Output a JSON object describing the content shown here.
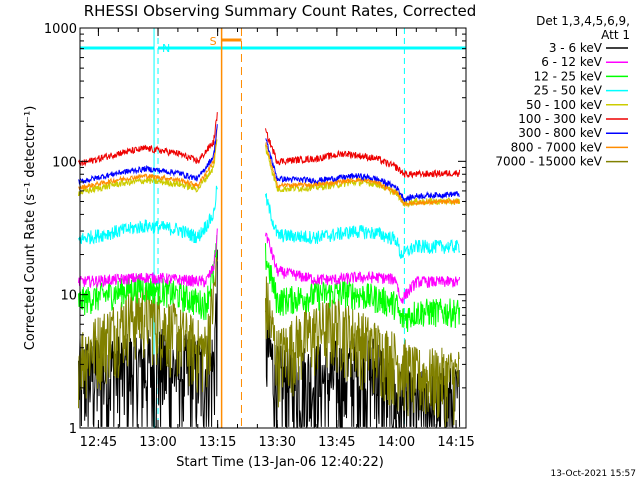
{
  "window": {
    "title": "RHESSI Observing Summary Count Rates, Corrected",
    "footer_date": "13-Oct-2021 15:57"
  },
  "legend": {
    "header": [
      "Det 1,3,4,5,6,9,",
      "Att 1"
    ],
    "entries": [
      {
        "label": "3 - 6 keV",
        "color": "#000000"
      },
      {
        "label": "6 - 12 keV",
        "color": "#ff00ff"
      },
      {
        "label": "12 - 25 keV",
        "color": "#00ff00"
      },
      {
        "label": "25 - 50 keV",
        "color": "#00ffff"
      },
      {
        "label": "50 - 100 keV",
        "color": "#cccc00"
      },
      {
        "label": "100 - 300 keV",
        "color": "#ee0000"
      },
      {
        "label": "300 - 800 keV",
        "color": "#0000ff"
      },
      {
        "label": "800 - 7000 keV",
        "color": "#ff8c00"
      },
      {
        "label": "7000 - 15000 keV",
        "color": "#808000"
      }
    ]
  },
  "chart_data": {
    "type": "line",
    "title": "RHESSI Observing Summary Count Rates, Corrected",
    "xlabel": "Start Time (13-Jan-06 12:40:22)",
    "ylabel": "Corrected Count Rate (s⁻¹ detector⁻¹)",
    "y_scale": "log",
    "xlim": [
      "12:40:22",
      "14:17:30"
    ],
    "ylim": [
      1,
      1000
    ],
    "x_ticks": [
      "12:45",
      "13:00",
      "13:15",
      "13:30",
      "13:45",
      "14:00",
      "14:15"
    ],
    "y_ticks": [
      "1",
      "10",
      "100",
      "1000"
    ],
    "gaps": [
      [
        "13:16",
        "13:26"
      ]
    ],
    "annotations": [
      {
        "label": "N",
        "kind": "night",
        "start": "13:00",
        "end": null,
        "color": "#00ffff"
      },
      {
        "label": "",
        "kind": "night",
        "start": null,
        "end": "12:59",
        "color": "#00ffff"
      },
      {
        "label": "",
        "kind": "night",
        "start": "14:02",
        "end": null,
        "color": "#00ffff"
      },
      {
        "label": "S",
        "kind": "SAA",
        "start": "13:16",
        "end": "13:21",
        "color": "#ff8c00"
      }
    ],
    "series": [
      {
        "name": "3 - 6 keV",
        "color": "#000000",
        "noise": 0.9,
        "x": [
          "12:40",
          "12:50",
          "13:00",
          "13:10",
          "13:14",
          "13:15",
          "13:16",
          "13:26",
          "13:27",
          "13:30",
          "13:40",
          "13:50",
          "13:55",
          "14:00",
          "14:05",
          "14:10",
          "14:16"
        ],
        "y": [
          2.5,
          2.8,
          3.0,
          2.6,
          3.0,
          13,
          null,
          null,
          5,
          2.2,
          2.3,
          2.6,
          2.7,
          1.5,
          1.4,
          1.5,
          1.6
        ]
      },
      {
        "name": "6 - 12 keV",
        "color": "#ff00ff",
        "noise": 0.1,
        "x": [
          "12:40",
          "12:50",
          "12:57",
          "13:05",
          "13:12",
          "13:14",
          "13:15",
          "13:16",
          "13:26",
          "13:27",
          "13:30",
          "13:40",
          "13:45",
          "13:50",
          "13:55",
          "14:00",
          "14:01",
          "14:05",
          "14:16"
        ],
        "y": [
          12.5,
          13,
          13.5,
          13,
          12.5,
          16,
          30,
          null,
          null,
          30,
          15,
          13,
          13,
          13.5,
          13.5,
          13,
          9,
          12.5,
          12.5
        ]
      },
      {
        "name": "12 - 25 keV",
        "color": "#00ff00",
        "noise": 0.25,
        "x": [
          "12:40",
          "12:50",
          "12:55",
          "13:00",
          "13:05",
          "13:12",
          "13:14",
          "13:15",
          "13:16",
          "13:26",
          "13:27",
          "13:30",
          "13:40",
          "13:47",
          "13:55",
          "14:00",
          "14:01",
          "14:05",
          "14:16"
        ],
        "y": [
          9,
          10.5,
          11.5,
          11,
          10,
          8.5,
          15,
          25,
          null,
          null,
          20,
          9,
          10,
          10.5,
          9.5,
          8.5,
          6.5,
          7.5,
          7.5
        ]
      },
      {
        "name": "25 - 50 keV",
        "color": "#00ffff",
        "noise": 0.12,
        "x": [
          "12:40",
          "12:50",
          "12:57",
          "13:05",
          "13:10",
          "13:14",
          "13:15",
          "13:16",
          "13:26",
          "13:27",
          "13:30",
          "13:40",
          "13:50",
          "13:55",
          "14:00",
          "14:01",
          "14:05",
          "14:16"
        ],
        "y": [
          26,
          30,
          33,
          31,
          27,
          40,
          70,
          null,
          null,
          55,
          28,
          27,
          30,
          29,
          26,
          20,
          23,
          23
        ]
      },
      {
        "name": "50 - 100 keV",
        "color": "#cccc00",
        "noise": 0.06,
        "x": [
          "12:40",
          "12:50",
          "12:57",
          "13:05",
          "13:10",
          "13:14",
          "13:15",
          "13:16",
          "13:26",
          "13:27",
          "13:30",
          "13:40",
          "13:50",
          "13:55",
          "14:00",
          "14:02",
          "14:05",
          "14:16"
        ],
        "y": [
          58,
          68,
          72,
          68,
          62,
          90,
          160,
          null,
          null,
          130,
          62,
          64,
          70,
          68,
          58,
          48,
          50,
          50
        ]
      },
      {
        "name": "100 - 300 keV",
        "color": "#ee0000",
        "noise": 0.06,
        "x": [
          "12:40",
          "12:50",
          "12:57",
          "13:05",
          "13:10",
          "13:14",
          "13:15",
          "13:16",
          "13:26",
          "13:27",
          "13:30",
          "13:40",
          "13:47",
          "13:55",
          "14:00",
          "14:02",
          "14:05",
          "14:16"
        ],
        "y": [
          95,
          115,
          125,
          115,
          100,
          140,
          240,
          null,
          null,
          170,
          100,
          105,
          115,
          105,
          90,
          80,
          80,
          82
        ]
      },
      {
        "name": "300 - 800 keV",
        "color": "#0000ff",
        "noise": 0.05,
        "x": [
          "12:40",
          "12:50",
          "12:57",
          "13:05",
          "13:10",
          "13:14",
          "13:15",
          "13:16",
          "13:26",
          "13:27",
          "13:30",
          "13:40",
          "13:50",
          "13:55",
          "14:00",
          "14:02",
          "14:05",
          "14:16"
        ],
        "y": [
          70,
          82,
          88,
          82,
          74,
          110,
          200,
          null,
          null,
          150,
          74,
          72,
          78,
          74,
          64,
          52,
          55,
          57
        ]
      },
      {
        "name": "800 - 7000 keV",
        "color": "#ff8c00",
        "noise": 0.04,
        "x": [
          "12:40",
          "12:50",
          "12:57",
          "13:05",
          "13:10",
          "13:14",
          "13:15",
          "13:16",
          "13:26",
          "13:27",
          "13:30",
          "13:40",
          "13:50",
          "13:55",
          "14:00",
          "14:02",
          "14:05",
          "14:16"
        ],
        "y": [
          63,
          73,
          78,
          73,
          66,
          100,
          190,
          null,
          null,
          140,
          66,
          67,
          73,
          70,
          58,
          48,
          49,
          50
        ]
      },
      {
        "name": "7000 - 15000 keV",
        "color": "#808000",
        "noise": 0.6,
        "x": [
          "12:40",
          "12:47",
          "12:53",
          "12:57",
          "13:02",
          "13:08",
          "13:12",
          "13:14",
          "13:15",
          "13:16",
          "13:26",
          "13:27",
          "13:30",
          "13:35",
          "13:40",
          "13:45",
          "13:50",
          "13:55",
          "14:00",
          "14:05",
          "14:16"
        ],
        "y": [
          3.5,
          5,
          7,
          7.5,
          6,
          4.5,
          3.8,
          10,
          18,
          null,
          null,
          10,
          3.5,
          4.5,
          5.5,
          6,
          5,
          4,
          3.3,
          2.5,
          2.5
        ]
      }
    ]
  }
}
